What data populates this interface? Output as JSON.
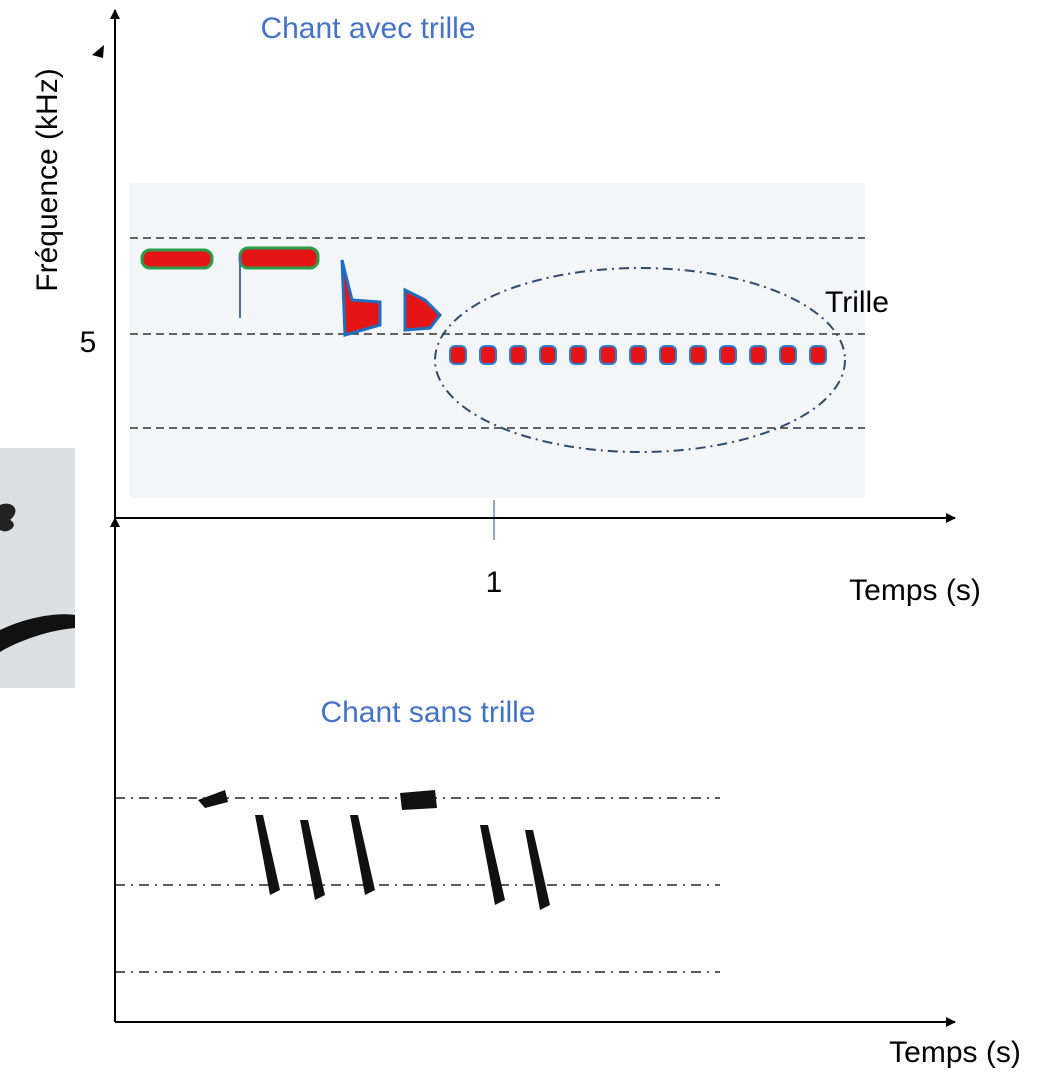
{
  "top_panel": {
    "title": "Chant avec trille",
    "y_axis_label": "Fréquence (kHz)",
    "y_tick_label": "5",
    "x_tick_label": "1",
    "x_axis_label": "Temps (s)",
    "annotation": "Trille"
  },
  "bottom_panel": {
    "title": "Chant sans trille",
    "x_axis_label": "Temps (s)"
  }
}
